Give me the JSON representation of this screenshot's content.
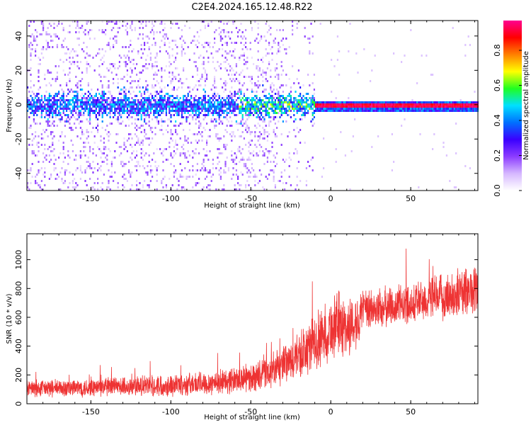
{
  "title": "C2E4.2024.165.12.48.R22",
  "chart_data": [
    {
      "type": "heatmap",
      "xlabel": "Height of straight line (km)",
      "ylabel": "Frequency (Hz)",
      "xlim": [
        -190,
        92
      ],
      "ylim": [
        -50,
        49
      ],
      "x_ticks": [
        -150,
        -100,
        -50,
        0,
        50
      ],
      "y_ticks": [
        -40,
        -20,
        0,
        20,
        40
      ],
      "grid": false,
      "colorbar": {
        "label": "Normalized spectral amplitude",
        "range": [
          0.0,
          0.97
        ],
        "ticks": [
          0.0,
          0.2,
          0.4,
          0.6,
          0.8
        ],
        "colors": [
          "#ffffff",
          "#d6b8ff",
          "#8c3cff",
          "#3a00ff",
          "#0070ff",
          "#00e0ff",
          "#20ff20",
          "#ffff00",
          "#ff8000",
          "#ff0000",
          "#ff0090"
        ]
      },
      "features": {
        "center_frequency": 0,
        "band_transition_height_km": -10,
        "narrow_band_halfwidth_hz": 1.5
      }
    },
    {
      "type": "line",
      "xlabel": "Height of straight line (km)",
      "ylabel": "SNR (10 * v/v)",
      "xlim": [
        -190,
        92
      ],
      "ylim": [
        0,
        1180
      ],
      "x_ticks": [
        -150,
        -100,
        -50,
        0,
        50
      ],
      "y_ticks": [
        0,
        200,
        400,
        600,
        800,
        1000
      ],
      "grid": false,
      "series": [
        {
          "color": "#ee3333",
          "x": [
            -190,
            -170,
            -150,
            -130,
            -110,
            -90,
            -70,
            -50,
            -40,
            -30,
            -20,
            -10,
            0,
            5,
            10,
            15,
            20,
            30,
            40,
            50,
            60,
            70,
            80,
            92
          ],
          "mean": [
            105,
            108,
            112,
            118,
            125,
            135,
            150,
            180,
            210,
            260,
            330,
            420,
            520,
            560,
            520,
            560,
            640,
            660,
            680,
            700,
            720,
            740,
            760,
            800
          ],
          "spread": [
            70,
            70,
            75,
            80,
            85,
            90,
            100,
            110,
            130,
            150,
            190,
            230,
            250,
            260,
            240,
            220,
            170,
            160,
            160,
            160,
            170,
            180,
            190,
            200
          ]
        }
      ]
    }
  ]
}
